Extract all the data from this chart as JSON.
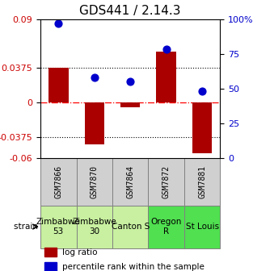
{
  "title": "GDS441 / 2.14.3",
  "samples": [
    "GSM7866",
    "GSM7870",
    "GSM7864",
    "GSM7872",
    "GSM7881"
  ],
  "log_ratios": [
    0.0375,
    -0.045,
    -0.005,
    0.055,
    -0.055
  ],
  "percentile_ranks": [
    97,
    58,
    55,
    78,
    48
  ],
  "strains": [
    "Zimbabwe\n53",
    "Zimbabwe\n30",
    "Canton S",
    "Oregon\nR",
    "St Louis"
  ],
  "strain_colors": [
    "#c8f0a0",
    "#c8f0a0",
    "#c8f0a0",
    "#50e050",
    "#50e050"
  ],
  "ylim_min": -0.06,
  "ylim_max": 0.09,
  "yticks_left": [
    -0.06,
    -0.0375,
    0,
    0.0375,
    0.09
  ],
  "yticks_right": [
    0,
    25,
    50,
    75,
    100
  ],
  "hline_y": [
    0.0375,
    -0.0375
  ],
  "bar_color": "#aa0000",
  "dot_color": "#0000cc",
  "bar_width": 0.55,
  "dot_size": 40,
  "left_axis_color": "#cc0000",
  "right_axis_color": "#0000cc",
  "title_fontsize": 11,
  "tick_fontsize": 8,
  "legend_fontsize": 7.5,
  "gsm_fontsize": 7,
  "strain_fontsize": 7.5
}
